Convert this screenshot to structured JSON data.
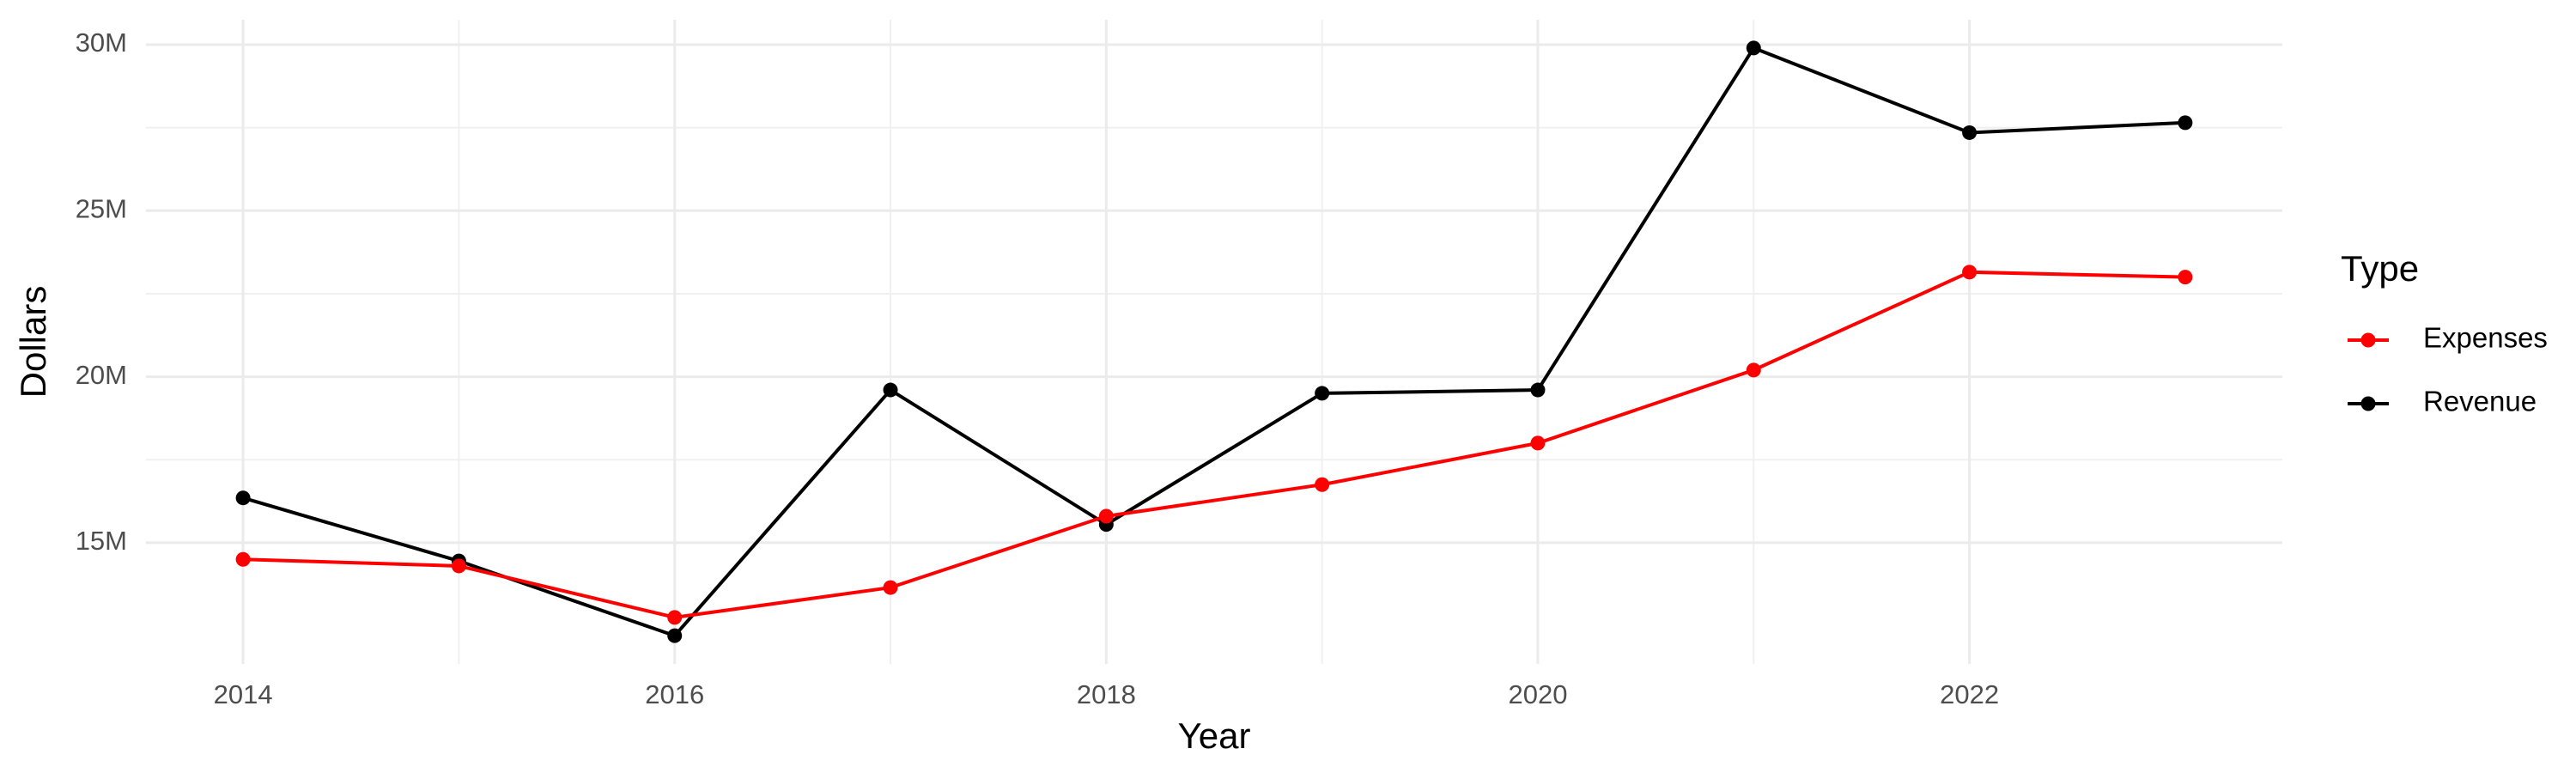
{
  "chart_data": {
    "type": "line",
    "x_label": "Year",
    "y_label": "Dollars",
    "legend_title": "Type",
    "legend": "right",
    "x": [
      2014,
      2015,
      2016,
      2017,
      2018,
      2019,
      2020,
      2021,
      2022,
      2023
    ],
    "series": [
      {
        "name": "Expenses",
        "color": "#ff0000",
        "values": [
          14500000,
          14300000,
          12750000,
          13650000,
          15800000,
          16750000,
          18000000,
          20200000,
          23150000,
          23000000
        ]
      },
      {
        "name": "Revenue",
        "color": "#000000",
        "values": [
          16350000,
          14450000,
          12200000,
          19600000,
          15550000,
          19500000,
          19600000,
          29900000,
          27350000,
          27650000
        ]
      }
    ],
    "xlim": [
      2013.55,
      2023.45
    ],
    "xticks": [
      2014,
      2016,
      2018,
      2020,
      2022
    ],
    "ylim": [
      11350000,
      30750000
    ],
    "yticks": [
      {
        "value": 15000000,
        "label": "15M"
      },
      {
        "value": 20000000,
        "label": "20M"
      },
      {
        "value": 25000000,
        "label": "25M"
      },
      {
        "value": 30000000,
        "label": "30M"
      }
    ],
    "grid": true
  }
}
